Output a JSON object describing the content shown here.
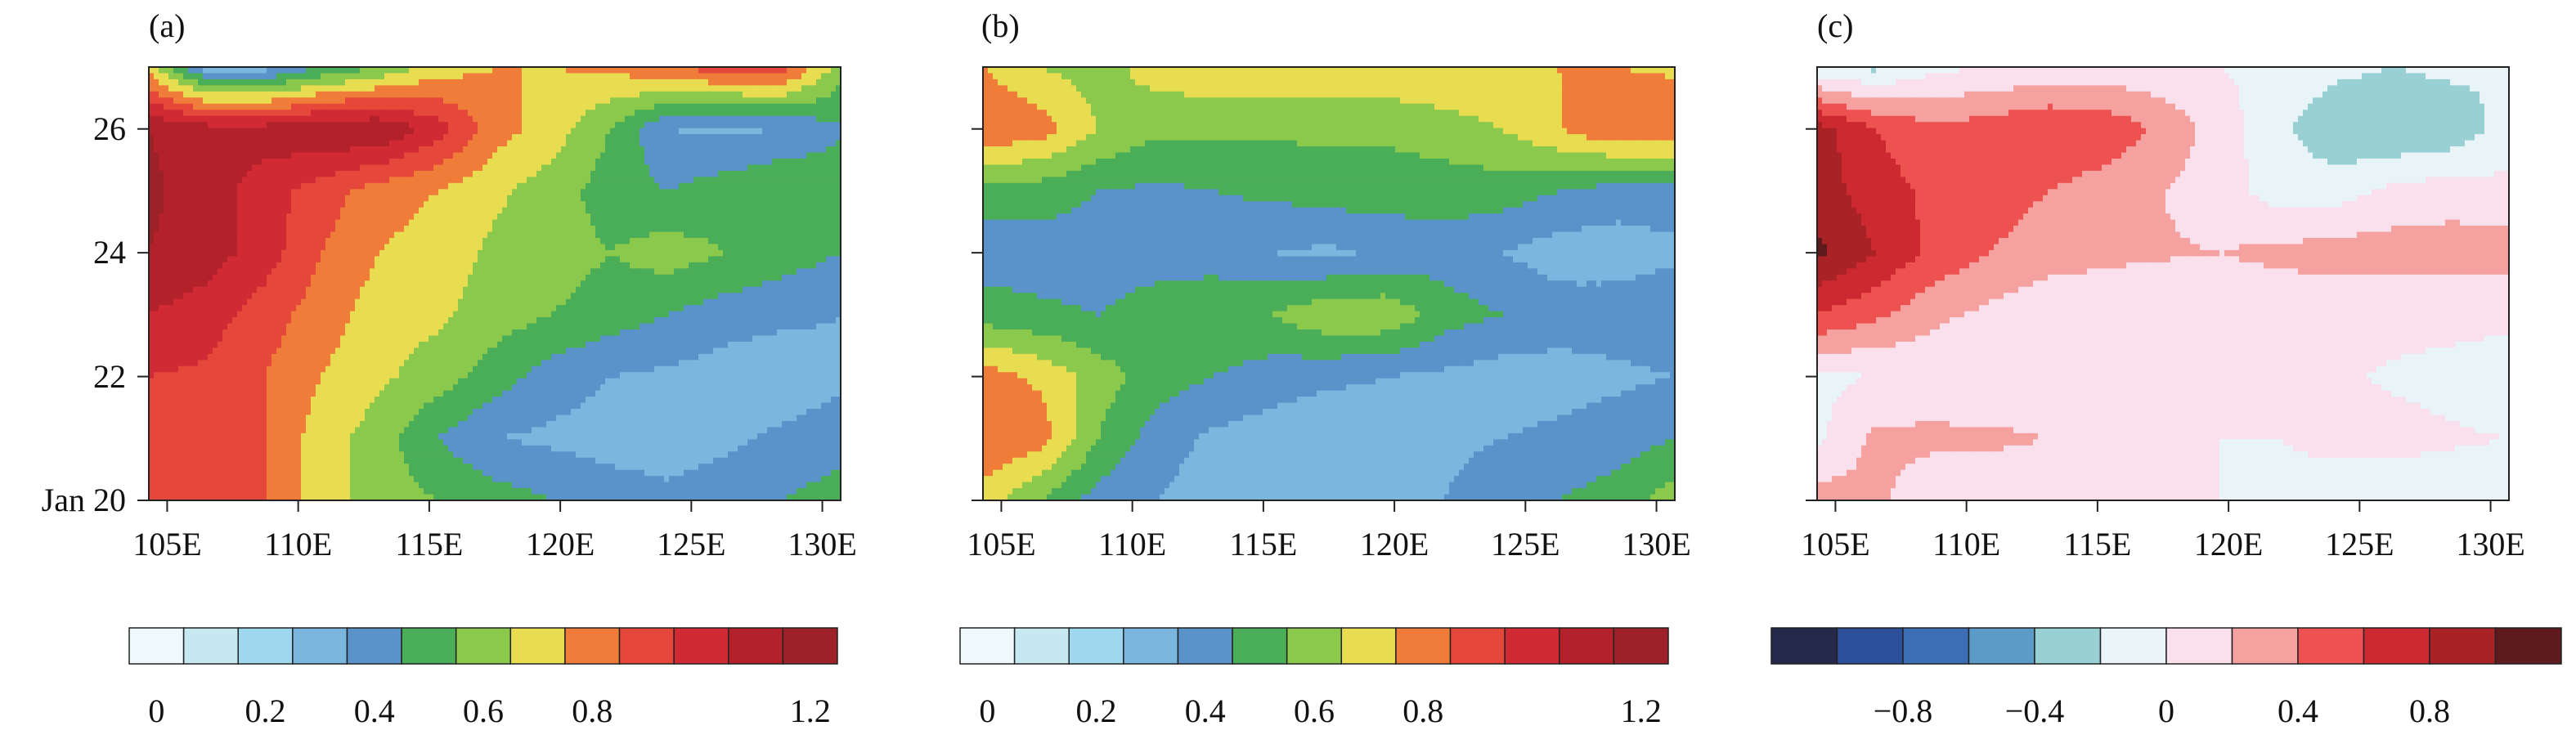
{
  "chart_data": [
    {
      "panel_label": "(a)",
      "type": "heatmap",
      "x_ticks": [
        "105E",
        "110E",
        "115E",
        "120E",
        "125E",
        "130E"
      ],
      "y_ticks": [
        "Jan 20",
        "22",
        "24",
        "26"
      ],
      "xlim": [
        104.3,
        130.7
      ],
      "ylim": [
        20,
        27
      ],
      "levels": [
        0,
        0.1,
        0.2,
        0.3,
        0.4,
        0.5,
        0.6,
        0.7,
        0.8,
        0.9,
        1.0,
        1.1,
        1.2,
        1.3
      ],
      "colors": [
        "#eff9fb",
        "#c6e9f1",
        "#9fd8ee",
        "#7ab6de",
        "#5a93c9",
        "#4aad57",
        "#8bc94d",
        "#e8dc50",
        "#f07c39",
        "#e5483a",
        "#d12a35",
        "#b3212b",
        "#9d2228"
      ],
      "colorbar_labels": [
        "0",
        "0.2",
        "0.4",
        "0.6",
        "0.8",
        "1.2"
      ],
      "field_x": [
        104.3,
        106.5,
        108.7,
        110.9,
        113.1,
        115.3,
        117.5,
        119.7,
        121.9,
        124.1,
        126.3,
        128.5,
        130.7
      ],
      "field_y": [
        20.0,
        21.0,
        22.0,
        23.0,
        24.0,
        25.0,
        26.0,
        27.0
      ],
      "field": [
        [
          0.95,
          0.95,
          0.9,
          0.75,
          0.65,
          0.6,
          0.55,
          0.5,
          0.45,
          0.42,
          0.45,
          0.5,
          0.55
        ],
        [
          0.95,
          1.0,
          0.9,
          0.75,
          0.65,
          0.5,
          0.4,
          0.38,
          0.36,
          0.36,
          0.38,
          0.42,
          0.45
        ],
        [
          1.0,
          0.98,
          0.9,
          0.8,
          0.72,
          0.65,
          0.55,
          0.45,
          0.4,
          0.38,
          0.35,
          0.34,
          0.38
        ],
        [
          1.1,
          1.05,
          0.95,
          0.85,
          0.75,
          0.72,
          0.65,
          0.6,
          0.55,
          0.5,
          0.45,
          0.42,
          0.4
        ],
        [
          1.2,
          1.15,
          1.05,
          0.9,
          0.8,
          0.75,
          0.68,
          0.65,
          0.6,
          0.65,
          0.6,
          0.55,
          0.5
        ],
        [
          1.22,
          1.15,
          1.05,
          0.95,
          0.85,
          0.8,
          0.72,
          0.65,
          0.55,
          0.5,
          0.55,
          0.6,
          0.58
        ],
        [
          1.2,
          1.15,
          1.15,
          1.2,
          1.2,
          1.05,
          0.85,
          0.75,
          0.6,
          0.4,
          0.38,
          0.4,
          0.48
        ],
        [
          0.75,
          0.35,
          0.35,
          0.5,
          0.6,
          0.75,
          0.8,
          0.8,
          0.82,
          0.9,
          0.95,
          0.95,
          0.65
        ]
      ]
    },
    {
      "panel_label": "(b)",
      "type": "heatmap",
      "x_ticks": [
        "105E",
        "110E",
        "115E",
        "120E",
        "125E",
        "130E"
      ],
      "y_ticks": [
        "",
        "",
        "",
        ""
      ],
      "xlim": [
        104.3,
        130.7
      ],
      "ylim": [
        20,
        27
      ],
      "levels": [
        0,
        0.1,
        0.2,
        0.3,
        0.4,
        0.5,
        0.6,
        0.7,
        0.8,
        0.9,
        1.0,
        1.1,
        1.2,
        1.3
      ],
      "colors": [
        "#eff9fb",
        "#c6e9f1",
        "#9fd8ee",
        "#7ab6de",
        "#5a93c9",
        "#4aad57",
        "#8bc94d",
        "#e8dc50",
        "#f07c39",
        "#e5483a",
        "#d12a35",
        "#b3212b",
        "#9d2228"
      ],
      "colorbar_labels": [
        "0",
        "0.2",
        "0.4",
        "0.6",
        "0.8",
        "1.2"
      ],
      "field_x": [
        104.3,
        106.5,
        108.7,
        110.9,
        113.1,
        115.3,
        117.5,
        119.7,
        121.9,
        124.1,
        126.3,
        128.5,
        130.7
      ],
      "field_y": [
        20.0,
        21.0,
        22.0,
        23.0,
        24.0,
        25.0,
        26.0,
        27.0
      ],
      "field": [
        [
          0.75,
          0.6,
          0.45,
          0.4,
          0.35,
          0.35,
          0.35,
          0.38,
          0.4,
          0.45,
          0.5,
          0.55,
          0.65
        ],
        [
          0.9,
          0.85,
          0.6,
          0.45,
          0.38,
          0.35,
          0.33,
          0.35,
          0.38,
          0.4,
          0.42,
          0.45,
          0.5
        ],
        [
          0.85,
          0.78,
          0.65,
          0.55,
          0.5,
          0.45,
          0.42,
          0.4,
          0.38,
          0.35,
          0.36,
          0.38,
          0.4
        ],
        [
          0.55,
          0.52,
          0.5,
          0.55,
          0.58,
          0.6,
          0.68,
          0.68,
          0.55,
          0.5,
          0.45,
          0.45,
          0.48
        ],
        [
          0.45,
          0.45,
          0.45,
          0.45,
          0.45,
          0.4,
          0.38,
          0.42,
          0.45,
          0.4,
          0.35,
          0.35,
          0.38
        ],
        [
          0.55,
          0.55,
          0.5,
          0.48,
          0.5,
          0.52,
          0.55,
          0.55,
          0.55,
          0.55,
          0.5,
          0.45,
          0.45
        ],
        [
          0.9,
          0.85,
          0.7,
          0.62,
          0.62,
          0.62,
          0.62,
          0.62,
          0.65,
          0.7,
          0.8,
          0.9,
          0.9
        ],
        [
          0.8,
          0.7,
          0.65,
          0.75,
          0.78,
          0.78,
          0.78,
          0.78,
          0.8,
          0.8,
          0.8,
          0.8,
          0.78
        ]
      ]
    },
    {
      "panel_label": "(c)",
      "type": "heatmap",
      "x_ticks": [
        "105E",
        "110E",
        "115E",
        "120E",
        "125E",
        "130E"
      ],
      "y_ticks": [
        "",
        "",
        "",
        ""
      ],
      "xlim": [
        104.3,
        130.7
      ],
      "ylim": [
        20,
        27
      ],
      "levels": [
        -1.2,
        -1.0,
        -0.8,
        -0.6,
        -0.4,
        -0.2,
        0,
        0.2,
        0.4,
        0.6,
        0.8,
        1.0,
        1.2
      ],
      "colors": [
        "#24294a",
        "#2c4f9a",
        "#3b6eb5",
        "#5c9ac8",
        "#99d0d3",
        "#e8f4f8",
        "#fae0ec",
        "#f4a1a0",
        "#ee5250",
        "#cc2a30",
        "#a82226",
        "#5f1a1e"
      ],
      "colorbar_labels": [
        "−0.8",
        "−0.4",
        "0",
        "0.4",
        "0.8"
      ],
      "field_x": [
        104.3,
        106.5,
        108.7,
        110.9,
        113.1,
        115.3,
        117.5,
        119.7,
        121.9,
        124.1,
        126.3,
        128.5,
        130.7
      ],
      "field_y": [
        20.0,
        21.0,
        22.0,
        23.0,
        24.0,
        25.0,
        26.0,
        27.0
      ],
      "field": [
        [
          0.3,
          0.25,
          0.05,
          0.0,
          0.0,
          0.0,
          0.0,
          0.0,
          -0.05,
          -0.1,
          -0.1,
          -0.1,
          -0.1
        ],
        [
          -0.05,
          0.25,
          0.25,
          0.25,
          0.2,
          0.05,
          0.0,
          0.0,
          0.0,
          0.05,
          0.05,
          0.02,
          0.0
        ],
        [
          -0.05,
          0.0,
          0.05,
          0.0,
          0.02,
          0.05,
          0.05,
          0.05,
          0.05,
          0.02,
          -0.02,
          -0.05,
          -0.1
        ],
        [
          0.6,
          0.45,
          0.25,
          0.15,
          0.05,
          0.05,
          0.05,
          0.05,
          0.05,
          0.05,
          0.05,
          0.05,
          0.05
        ],
        [
          1.05,
          0.8,
          0.55,
          0.4,
          0.3,
          0.25,
          0.22,
          0.2,
          0.25,
          0.3,
          0.3,
          0.3,
          0.3
        ],
        [
          0.9,
          0.7,
          0.55,
          0.5,
          0.4,
          0.3,
          0.2,
          0.1,
          -0.1,
          -0.1,
          0.05,
          0.1,
          0.05
        ],
        [
          0.9,
          0.6,
          0.45,
          0.5,
          0.6,
          0.55,
          0.35,
          0.1,
          -0.15,
          -0.35,
          -0.4,
          -0.35,
          -0.1
        ],
        [
          -0.15,
          -0.25,
          -0.05,
          0.0,
          0.05,
          0.05,
          0.05,
          0.0,
          -0.05,
          -0.15,
          -0.2,
          -0.15,
          -0.2
        ]
      ]
    }
  ]
}
